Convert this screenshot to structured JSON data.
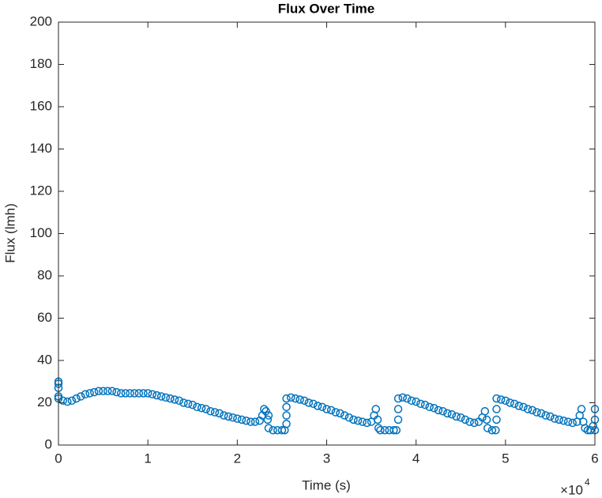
{
  "chart_data": {
    "type": "scatter",
    "title": "Flux Over Time",
    "x_label": "Time (s)",
    "y_label": "Flux (lmh)",
    "x_multiplier": {
      "base": "×10",
      "exponent": "4"
    },
    "color": "#0072BD",
    "grid": false,
    "marker": "circle",
    "xlim": [
      0,
      60000
    ],
    "ylim": [
      0,
      200
    ],
    "xticks": [
      {
        "value": 0,
        "label": "0"
      },
      {
        "value": 10000,
        "label": "1"
      },
      {
        "value": 20000,
        "label": "2"
      },
      {
        "value": 30000,
        "label": "3"
      },
      {
        "value": 40000,
        "label": "4"
      },
      {
        "value": 50000,
        "label": "5"
      },
      {
        "value": 60000,
        "label": "6"
      }
    ],
    "yticks": [
      0,
      20,
      40,
      60,
      80,
      100,
      120,
      140,
      160,
      180,
      200
    ],
    "x": [
      0,
      0,
      0,
      0,
      0,
      500,
      1000,
      1500,
      2000,
      2500,
      3000,
      3500,
      4000,
      4500,
      5000,
      5500,
      6000,
      6500,
      7000,
      7500,
      8000,
      8500,
      9000,
      9500,
      10000,
      10500,
      11000,
      11500,
      12000,
      12500,
      13000,
      13500,
      14000,
      14500,
      15000,
      15500,
      16000,
      16500,
      17000,
      17500,
      18000,
      18500,
      19000,
      19500,
      20000,
      20500,
      21000,
      21500,
      22000,
      22500,
      22800,
      23000,
      23200,
      23400,
      23500,
      23500,
      24000,
      24500,
      25000,
      25300,
      25500,
      25500,
      25500,
      25500,
      26000,
      26500,
      27000,
      27500,
      28000,
      28500,
      29000,
      29500,
      30000,
      30500,
      31000,
      31500,
      32000,
      32500,
      33000,
      33500,
      34000,
      34500,
      35000,
      35300,
      35500,
      35700,
      35800,
      36000,
      36500,
      37000,
      37500,
      37800,
      38000,
      38000,
      38000,
      38500,
      39000,
      39500,
      40000,
      40500,
      41000,
      41500,
      42000,
      42500,
      43000,
      43500,
      44000,
      44500,
      45000,
      45500,
      46000,
      46500,
      47000,
      47400,
      47700,
      47900,
      48000,
      48500,
      48900,
      49000,
      49000,
      49000,
      49500,
      50000,
      50500,
      51000,
      51500,
      52000,
      52500,
      53000,
      53500,
      54000,
      54500,
      55000,
      55500,
      56000,
      56500,
      57000,
      57500,
      58000,
      58300,
      58500,
      58700,
      58900,
      59200,
      59500,
      59800,
      60000,
      60000,
      60000
    ],
    "values": [
      30,
      29,
      27,
      23,
      22,
      21,
      20.5,
      21,
      22,
      23,
      24,
      24.5,
      25,
      25.5,
      25.5,
      25.5,
      25.5,
      25,
      24.5,
      24.5,
      24.5,
      24.5,
      24.5,
      24.5,
      24.5,
      24,
      23.5,
      23,
      22.5,
      22,
      21.5,
      21,
      20,
      19.5,
      19,
      18,
      17.5,
      17,
      16,
      15.5,
      15,
      14,
      13.5,
      13,
      12.5,
      12,
      11.5,
      11,
      11,
      11.5,
      14,
      17,
      16,
      12,
      8,
      14,
      7,
      7,
      7,
      7,
      10,
      14,
      18,
      22,
      22.5,
      22,
      21.5,
      21,
      20,
      19.5,
      18.5,
      18,
      17,
      16.5,
      15.5,
      15,
      14,
      13,
      12,
      11.5,
      11,
      10.5,
      11,
      14,
      17,
      12,
      8,
      7,
      7,
      7,
      7,
      7,
      12,
      17,
      22,
      22.5,
      22,
      21,
      20.5,
      19.5,
      19,
      18,
      17.5,
      16.5,
      16,
      15,
      14.5,
      13.5,
      13,
      12,
      11,
      10.5,
      11,
      13,
      16,
      12,
      8,
      7,
      7,
      12,
      17,
      22,
      21.5,
      21,
      20,
      19.5,
      18.5,
      18,
      17,
      16.5,
      15.5,
      15,
      14,
      13.5,
      12.5,
      12,
      11.5,
      11,
      10.5,
      11,
      14,
      17,
      11,
      8,
      7,
      7,
      9,
      7,
      12,
      17
    ]
  }
}
